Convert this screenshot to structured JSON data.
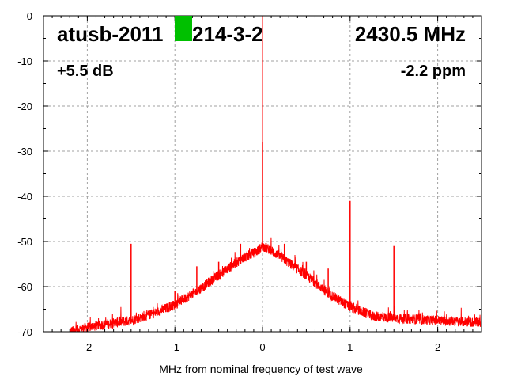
{
  "chart_data": {
    "type": "line",
    "title_left_a": "atusb-2011",
    "title_left_b": "214-3-2",
    "title_right": "2430.5 MHz",
    "subtitle_left": "+5.5 dB",
    "subtitle_right": "-2.2 ppm",
    "xlabel": "MHz from nominal frequency of test wave",
    "ylabel": "",
    "xlim": [
      -2.5,
      2.5
    ],
    "ylim": [
      -70,
      0
    ],
    "x_ticks": [
      -2,
      -1,
      0,
      1,
      2
    ],
    "x_tick_labels": [
      "-2",
      "-1",
      "0",
      "1",
      "2"
    ],
    "y_ticks": [
      0,
      -10,
      -20,
      -30,
      -40,
      -50,
      -60,
      -70
    ],
    "y_tick_labels": [
      "0",
      "-10",
      "-20",
      "-30",
      "-40",
      "-50",
      "-60",
      "-70"
    ],
    "grid": true,
    "series_color": "#ff0000",
    "redaction_color": "#00c000",
    "noise_floor_envelope": {
      "x": [
        -2.2,
        -2.0,
        -1.5,
        -1.25,
        -1.0,
        -0.75,
        -0.5,
        -0.25,
        -0.05,
        0.0,
        0.1,
        0.25,
        0.5,
        0.75,
        1.0,
        1.25,
        1.5,
        2.0,
        2.5
      ],
      "y": [
        -70,
        -69,
        -67.5,
        -66,
        -64,
        -61,
        -57.5,
        -54,
        -52,
        -51,
        -52,
        -54,
        -57.5,
        -61.5,
        -64.5,
        -66.5,
        -67,
        -67.5,
        -68
      ]
    },
    "spurs": [
      {
        "x": -1.5,
        "y": -50.5
      },
      {
        "x": -1.0,
        "y": -61
      },
      {
        "x": -0.75,
        "y": -55.5
      },
      {
        "x": -0.5,
        "y": -54.5
      },
      {
        "x": -0.25,
        "y": -50.5
      },
      {
        "x": 0.0,
        "y": 0
      },
      {
        "x": 0.0,
        "y": -28
      },
      {
        "x": 0.25,
        "y": -50.5
      },
      {
        "x": 0.5,
        "y": -54.5
      },
      {
        "x": 0.75,
        "y": -56
      },
      {
        "x": 1.0,
        "y": -41
      },
      {
        "x": 1.5,
        "y": -51
      }
    ]
  }
}
